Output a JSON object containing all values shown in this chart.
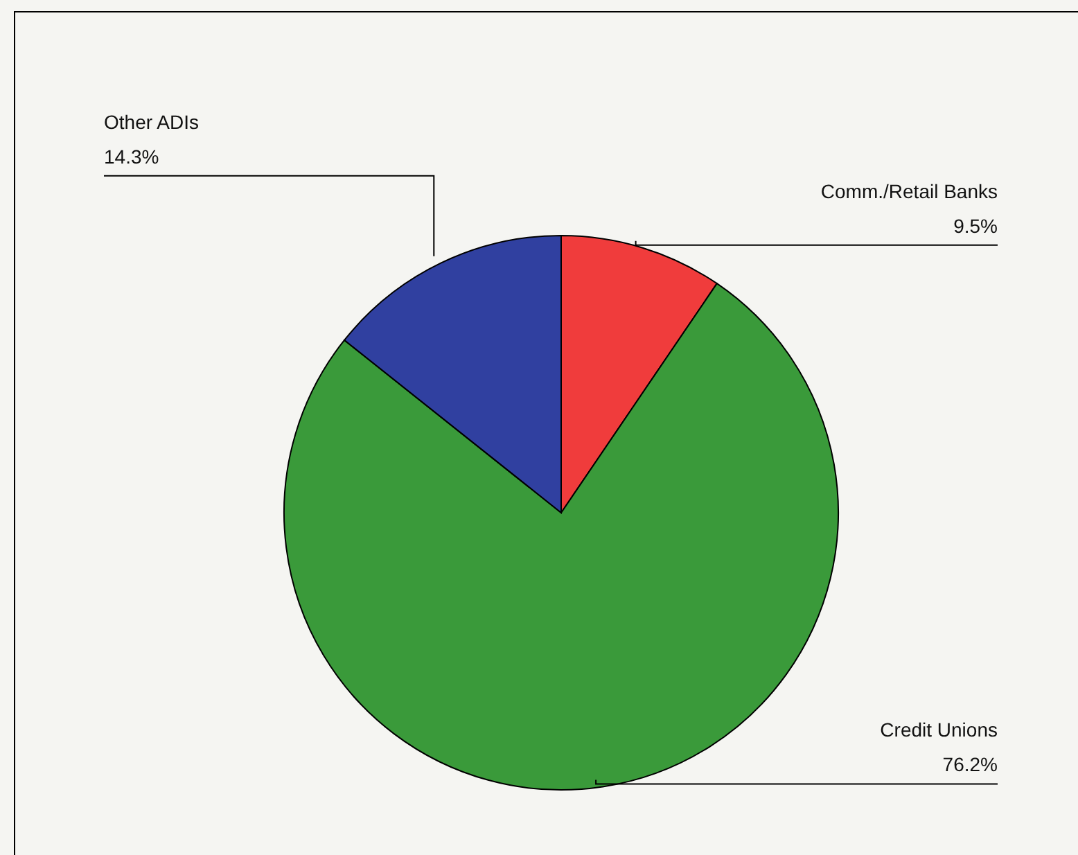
{
  "chart_data": {
    "type": "pie",
    "categories": [
      "Comm./Retail Banks",
      "Credit Unions",
      "Other ADIs"
    ],
    "values": [
      9.5,
      76.2,
      14.3
    ],
    "colors": [
      "#f03c3c",
      "#3a9a3a",
      "#3040a0"
    ],
    "value_labels": [
      "9.5%",
      "76.2%",
      "14.3%"
    ]
  }
}
